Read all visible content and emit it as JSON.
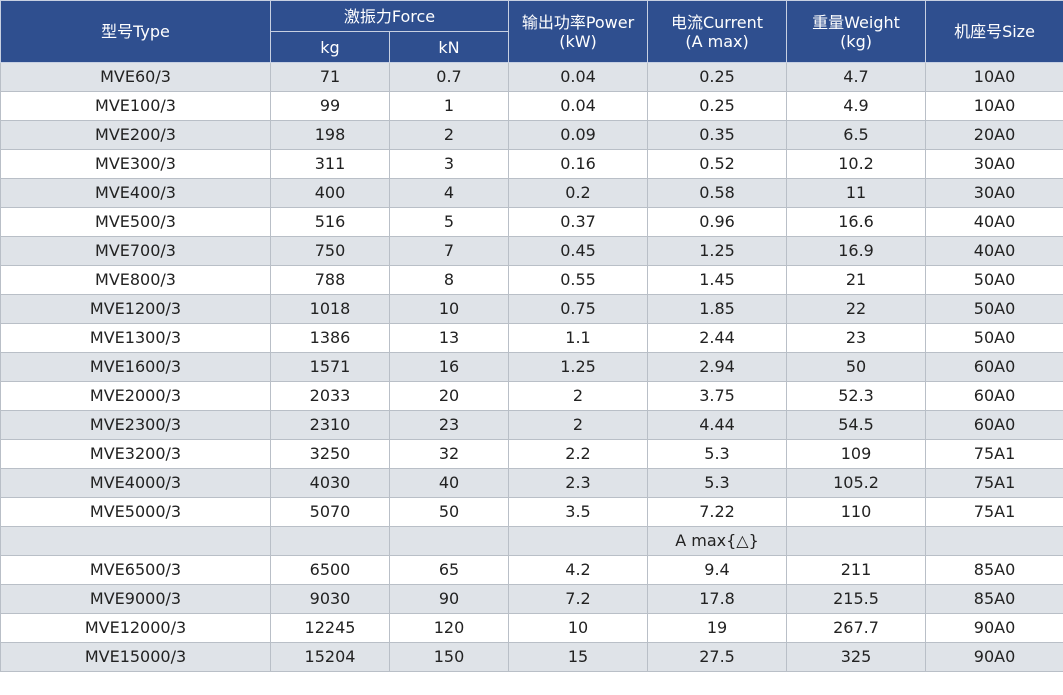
{
  "header": {
    "model": "型号Type",
    "force": "激振力Force",
    "force_kg": "kg",
    "force_kn": "kN",
    "power_line1": "输出功率Power",
    "power_line2": "(kW)",
    "current_line1": "电流Current",
    "current_line2": "(A max)",
    "weight_line1": "重量Weight",
    "weight_line2": "(kg)",
    "size": "机座号Size"
  },
  "rows": [
    {
      "model": "MVE60/3",
      "kg": "71",
      "kn": "0.7",
      "power": "0.04",
      "current": "0.25",
      "weight": "4.7",
      "size": "10A0"
    },
    {
      "model": "MVE100/3",
      "kg": "99",
      "kn": "1",
      "power": "0.04",
      "current": "0.25",
      "weight": "4.9",
      "size": "10A0"
    },
    {
      "model": "MVE200/3",
      "kg": "198",
      "kn": "2",
      "power": "0.09",
      "current": "0.35",
      "weight": "6.5",
      "size": "20A0"
    },
    {
      "model": "MVE300/3",
      "kg": "311",
      "kn": "3",
      "power": "0.16",
      "current": "0.52",
      "weight": "10.2",
      "size": "30A0"
    },
    {
      "model": "MVE400/3",
      "kg": "400",
      "kn": "4",
      "power": "0.2",
      "current": "0.58",
      "weight": "11",
      "size": "30A0"
    },
    {
      "model": "MVE500/3",
      "kg": "516",
      "kn": "5",
      "power": "0.37",
      "current": "0.96",
      "weight": "16.6",
      "size": "40A0"
    },
    {
      "model": "MVE700/3",
      "kg": "750",
      "kn": "7",
      "power": "0.45",
      "current": "1.25",
      "weight": "16.9",
      "size": "40A0"
    },
    {
      "model": "MVE800/3",
      "kg": "788",
      "kn": "8",
      "power": "0.55",
      "current": "1.45",
      "weight": "21",
      "size": "50A0"
    },
    {
      "model": "MVE1200/3",
      "kg": "1018",
      "kn": "10",
      "power": "0.75",
      "current": "1.85",
      "weight": "22",
      "size": "50A0"
    },
    {
      "model": "MVE1300/3",
      "kg": "1386",
      "kn": "13",
      "power": "1.1",
      "current": "2.44",
      "weight": "23",
      "size": "50A0"
    },
    {
      "model": "MVE1600/3",
      "kg": "1571",
      "kn": "16",
      "power": "1.25",
      "current": "2.94",
      "weight": "50",
      "size": "60A0"
    },
    {
      "model": "MVE2000/3",
      "kg": "2033",
      "kn": "20",
      "power": "2",
      "current": "3.75",
      "weight": "52.3",
      "size": "60A0"
    },
    {
      "model": "MVE2300/3",
      "kg": "2310",
      "kn": "23",
      "power": "2",
      "current": "4.44",
      "weight": "54.5",
      "size": "60A0"
    },
    {
      "model": "MVE3200/3",
      "kg": "3250",
      "kn": "32",
      "power": "2.2",
      "current": "5.3",
      "weight": "109",
      "size": "75A1"
    },
    {
      "model": "MVE4000/3",
      "kg": "4030",
      "kn": "40",
      "power": "2.3",
      "current": "5.3",
      "weight": "105.2",
      "size": "75A1"
    },
    {
      "model": "MVE5000/3",
      "kg": "5070",
      "kn": "50",
      "power": "3.5",
      "current": "7.22",
      "weight": "110",
      "size": "75A1"
    },
    {
      "model": "",
      "kg": "",
      "kn": "",
      "power": "",
      "current": "A max{△}",
      "weight": "",
      "size": ""
    },
    {
      "model": "MVE6500/3",
      "kg": "6500",
      "kn": "65",
      "power": "4.2",
      "current": "9.4",
      "weight": "211",
      "size": "85A0"
    },
    {
      "model": "MVE9000/3",
      "kg": "9030",
      "kn": "90",
      "power": "7.2",
      "current": "17.8",
      "weight": "215.5",
      "size": "85A0"
    },
    {
      "model": "MVE12000/3",
      "kg": "12245",
      "kn": "120",
      "power": "10",
      "current": "19",
      "weight": "267.7",
      "size": "90A0"
    },
    {
      "model": "MVE15000/3",
      "kg": "15204",
      "kn": "150",
      "power": "15",
      "current": "27.5",
      "weight": "325",
      "size": "90A0"
    }
  ],
  "colors": {
    "header_bg": "#2f4f8f",
    "header_text": "#ffffff",
    "stripe_bg": "#dfe3e8",
    "row_bg": "#ffffff",
    "text": "#222222"
  }
}
